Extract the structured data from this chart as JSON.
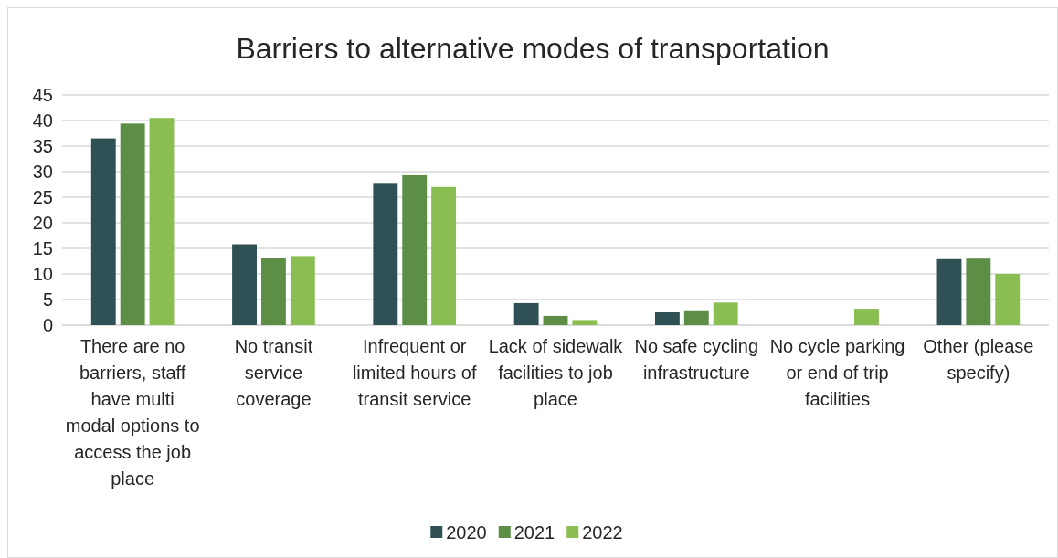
{
  "chart_data": {
    "type": "bar",
    "title": "Barriers to alternative modes of transportation",
    "categories": [
      "There are no barriers, staff have multi modal options to access the job place",
      "No transit service coverage",
      "Infrequent or limited hours of transit service",
      "Lack of sidewalk facilities to job place",
      "No safe cycling infrastructure",
      "No cycle parking or end of trip facilities",
      "Other (please specify)"
    ],
    "series": [
      {
        "name": "2020",
        "color": "#2f5055",
        "values": [
          36.5,
          15.8,
          27.8,
          4.3,
          2.5,
          0,
          12.9
        ]
      },
      {
        "name": "2021",
        "color": "#5c8e46",
        "values": [
          39.4,
          13.2,
          29.3,
          1.8,
          2.9,
          0,
          13.0
        ]
      },
      {
        "name": "2022",
        "color": "#8abd52",
        "values": [
          40.5,
          13.5,
          27.0,
          1.0,
          4.4,
          3.2,
          10.0
        ]
      }
    ],
    "ylim": [
      0,
      45
    ],
    "yticks": [
      0,
      5,
      10,
      15,
      20,
      25,
      30,
      35,
      40,
      45
    ],
    "grid": "y",
    "legend": "bottom"
  }
}
